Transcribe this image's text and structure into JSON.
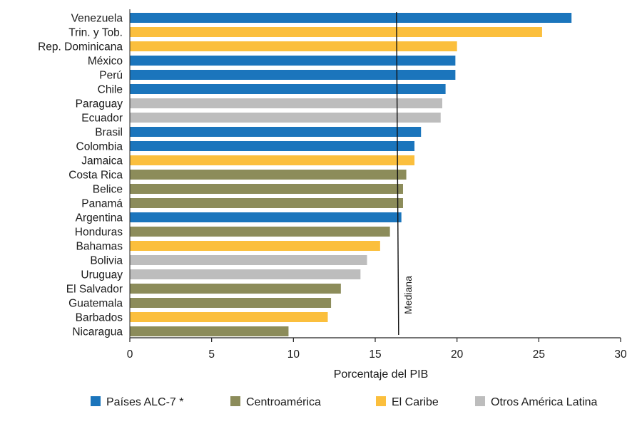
{
  "chart_data": {
    "type": "bar",
    "orientation": "horizontal",
    "xlabel": "Porcentaje del PIB",
    "xlim": [
      0,
      30
    ],
    "xticks": [
      0,
      5,
      10,
      15,
      20,
      25,
      30
    ],
    "grid": false,
    "legend_position": "bottom",
    "median": {
      "label": "Mediana",
      "value": 16.3
    },
    "groups": [
      {
        "key": "alc7",
        "label": "Países ALC-7 *",
        "color": "#1b75bc"
      },
      {
        "key": "ca",
        "label": "Centroamérica",
        "color": "#8c8c5a"
      },
      {
        "key": "caribe",
        "label": "El Caribe",
        "color": "#fbbf3d"
      },
      {
        "key": "otros",
        "label": "Otros América Latina",
        "color": "#bdbdbd"
      }
    ],
    "categories": [
      "Venezuela",
      "Trin. y Tob.",
      "Rep. Dominicana",
      "México",
      "Perú",
      "Chile",
      "Paraguay",
      "Ecuador",
      "Brasil",
      "Colombia",
      "Jamaica",
      "Costa Rica",
      "Belice",
      "Panamá",
      "Argentina",
      "Honduras",
      "Bahamas",
      "Bolivia",
      "Uruguay",
      "El Salvador",
      "Guatemala",
      "Barbados",
      "Nicaragua"
    ],
    "values": [
      27.0,
      25.2,
      20.0,
      19.9,
      19.9,
      19.3,
      19.1,
      19.0,
      17.8,
      17.4,
      17.4,
      16.9,
      16.7,
      16.7,
      16.6,
      15.9,
      15.3,
      14.5,
      14.1,
      12.9,
      12.3,
      12.1,
      9.7
    ],
    "group_of": [
      "alc7",
      "caribe",
      "caribe",
      "alc7",
      "alc7",
      "alc7",
      "otros",
      "otros",
      "alc7",
      "alc7",
      "caribe",
      "ca",
      "ca",
      "ca",
      "alc7",
      "ca",
      "caribe",
      "otros",
      "otros",
      "ca",
      "ca",
      "caribe",
      "ca"
    ]
  }
}
